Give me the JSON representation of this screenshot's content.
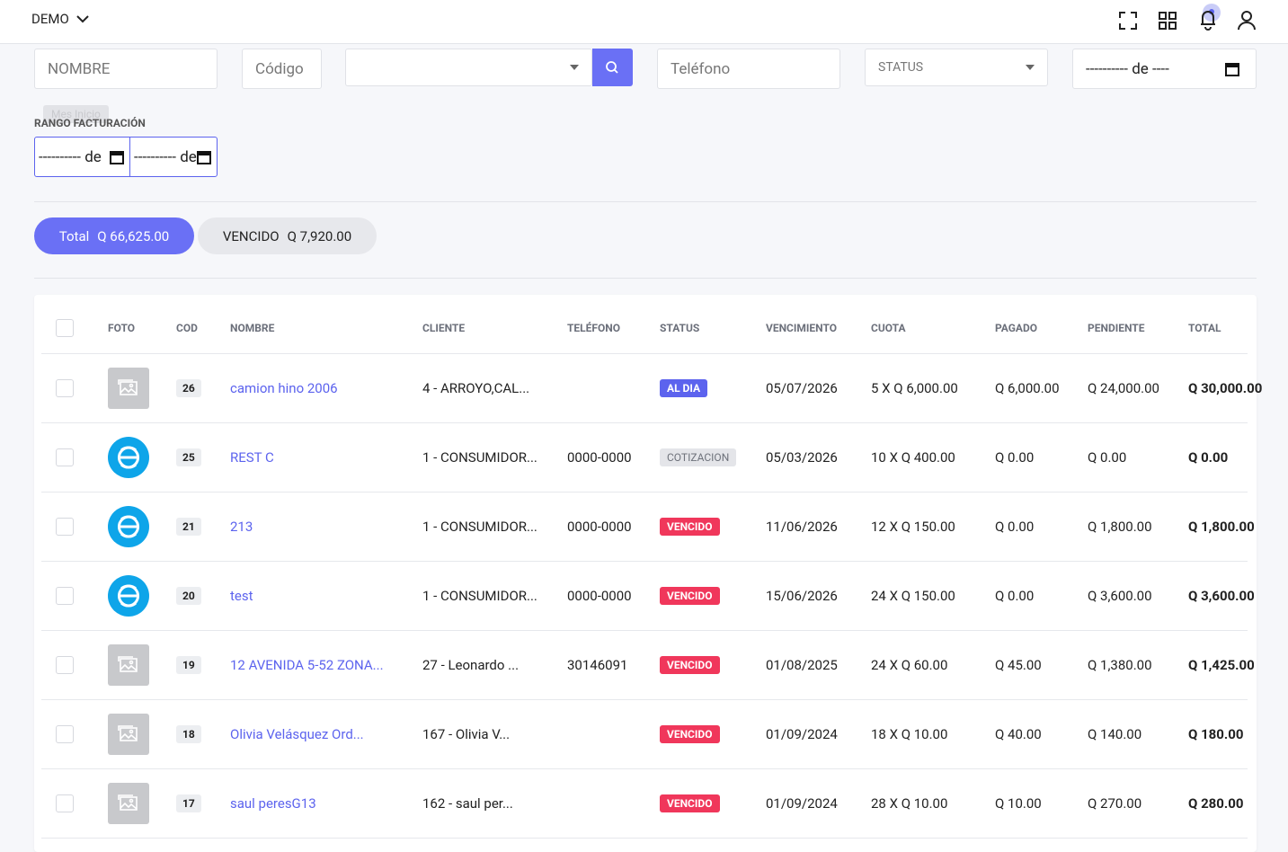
{
  "header": {
    "brand": "DEMO"
  },
  "filters": {
    "nombre": "NOMBRE",
    "codigo": "Código",
    "telefono": "Teléfono",
    "status": "STATUS",
    "fecha": "---------- de ----",
    "rango_label": "RANGO FACTURACIÓN",
    "tooltip": "Mes Inicio",
    "rango_desde": "---------- de",
    "rango_hasta": "---------- de"
  },
  "summary": [
    {
      "label": "Total",
      "amount": "Q 66,625.00",
      "active": true
    },
    {
      "label": "VENCIDO",
      "amount": "Q 7,920.00",
      "active": false
    }
  ],
  "table": {
    "columns": [
      "FOTO",
      "COD",
      "NOMBRE",
      "CLIENTE",
      "TELÉFONO",
      "STATUS",
      "VENCIMIENTO",
      "CUOTA",
      "PAGADO",
      "PENDIENTE",
      "TOTAL"
    ],
    "rows": [
      {
        "photo": "placeholder",
        "cod": 26,
        "nombre": "camion hino 2006",
        "cliente": "4 - ARROYO,CAL...",
        "telefono": null,
        "status": "AL DIA",
        "status_color": "#5c63ee",
        "vencimiento": "05/07/2026",
        "cuota": "5 X Q 6,000.00",
        "pagado": "Q 6,000.00",
        "pendiente": "Q 24,000.00",
        "total": "Q 30,000.00"
      },
      {
        "photo": "logo",
        "cod": 25,
        "nombre": "REST C",
        "cliente": "1 - CONSUMIDOR...",
        "telefono": "0000-0000",
        "status": "COTIZACION",
        "status_color": "#e4e5e9",
        "vencimiento": "05/03/2026",
        "cuota": "10 X Q 400.00",
        "pagado": "Q 0.00",
        "pendiente": "Q 0.00",
        "total": "Q 0.00"
      },
      {
        "photo": "logo",
        "cod": 21,
        "nombre": "213",
        "cliente": "1 - CONSUMIDOR...",
        "telefono": "0000-0000",
        "status": "VENCIDO",
        "status_color": "#f0375b",
        "vencimiento": "11/06/2026",
        "cuota": "12 X Q 150.00",
        "pagado": "Q 0.00",
        "pendiente": "Q 1,800.00",
        "total": "Q 1,800.00"
      },
      {
        "photo": "logo",
        "cod": 20,
        "nombre": "test",
        "cliente": "1 - CONSUMIDOR...",
        "telefono": "0000-0000",
        "status": "VENCIDO",
        "status_color": "#f0375b",
        "vencimiento": "15/06/2026",
        "cuota": "24 X Q 150.00",
        "pagado": "Q 0.00",
        "pendiente": "Q 3,600.00",
        "total": "Q 3,600.00"
      },
      {
        "photo": "placeholder",
        "cod": 19,
        "nombre": "12 AVENIDA 5-52 ZONA...",
        "cliente": "27 - Leonardo ...",
        "telefono": "30146091",
        "status": "VENCIDO",
        "status_color": "#f0375b",
        "vencimiento": "01/08/2025",
        "cuota": "24 X Q 60.00",
        "pagado": "Q 45.00",
        "pendiente": "Q 1,380.00",
        "total": "Q 1,425.00"
      },
      {
        "photo": "placeholder",
        "cod": 18,
        "nombre": "Olivia Velásquez Ord...",
        "cliente": "167 - Olivia V...",
        "telefono": null,
        "status": "VENCIDO",
        "status_color": "#f0375b",
        "vencimiento": "01/09/2024",
        "cuota": "18 X Q 10.00",
        "pagado": "Q 40.00",
        "pendiente": "Q 140.00",
        "total": "Q 180.00"
      },
      {
        "photo": "placeholder",
        "cod": 17,
        "nombre": "saul peresG13",
        "cliente": "162 - saul per...",
        "telefono": null,
        "status": "VENCIDO",
        "status_color": "#f0375b",
        "vencimiento": "01/09/2024",
        "cuota": "28 X Q 10.00",
        "pagado": "Q 10.00",
        "pendiente": "Q 270.00",
        "total": "Q 280.00"
      }
    ]
  }
}
